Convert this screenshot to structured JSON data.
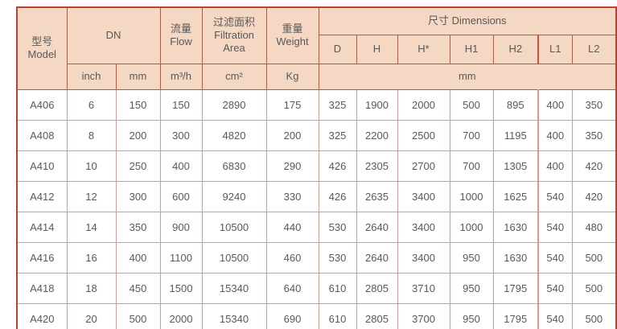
{
  "table": {
    "header": {
      "model_zh": "型号",
      "model_en": "Model",
      "dn": "DN",
      "flow_zh": "流量",
      "flow_en": "Flow",
      "filtration_zh": "过滤面积",
      "filtration_en": "Filtration Area",
      "weight_zh": "重量",
      "weight_en": "Weight",
      "dimensions": "尺寸 Dimensions",
      "sub": {
        "inch": "inch",
        "mm": "mm",
        "flow_unit": "m³/h",
        "area_unit": "cm²",
        "weight_unit": "Kg",
        "d": "D",
        "h": "H",
        "h_star": "H*",
        "h1": "H1",
        "h2": "H2",
        "l1": "L1",
        "l2": "L2",
        "dim_unit": "mm"
      }
    },
    "columns": [
      "model",
      "inch",
      "mm",
      "flow",
      "area",
      "weight",
      "d",
      "h",
      "h-star",
      "h1",
      "h2",
      "l1",
      "l2"
    ],
    "rows": [
      [
        "A406",
        "6",
        "150",
        "150",
        "2890",
        "175",
        "325",
        "1900",
        "2000",
        "500",
        "895",
        "400",
        "350"
      ],
      [
        "A408",
        "8",
        "200",
        "300",
        "4820",
        "200",
        "325",
        "2200",
        "2500",
        "700",
        "1195",
        "400",
        "350"
      ],
      [
        "A410",
        "10",
        "250",
        "400",
        "6830",
        "290",
        "426",
        "2305",
        "2700",
        "700",
        "1305",
        "400",
        "420"
      ],
      [
        "A412",
        "12",
        "300",
        "600",
        "9240",
        "330",
        "426",
        "2635",
        "3400",
        "1000",
        "1625",
        "540",
        "420"
      ],
      [
        "A414",
        "14",
        "350",
        "900",
        "10500",
        "440",
        "530",
        "2640",
        "3400",
        "1000",
        "1630",
        "540",
        "480"
      ],
      [
        "A416",
        "16",
        "400",
        "1100",
        "10500",
        "460",
        "530",
        "2640",
        "3400",
        "950",
        "1630",
        "540",
        "500"
      ],
      [
        "A418",
        "18",
        "450",
        "1500",
        "15340",
        "640",
        "610",
        "2805",
        "3710",
        "950",
        "1795",
        "540",
        "500"
      ],
      [
        "A420",
        "20",
        "500",
        "2000",
        "15340",
        "690",
        "610",
        "2805",
        "3700",
        "950",
        "1795",
        "540",
        "500"
      ]
    ],
    "colors": {
      "header_bg": "#f5d8c4",
      "header_border": "#cc5233",
      "outer_border": "#b8432f",
      "body_border": "#e8948a",
      "text": "#595959"
    }
  }
}
